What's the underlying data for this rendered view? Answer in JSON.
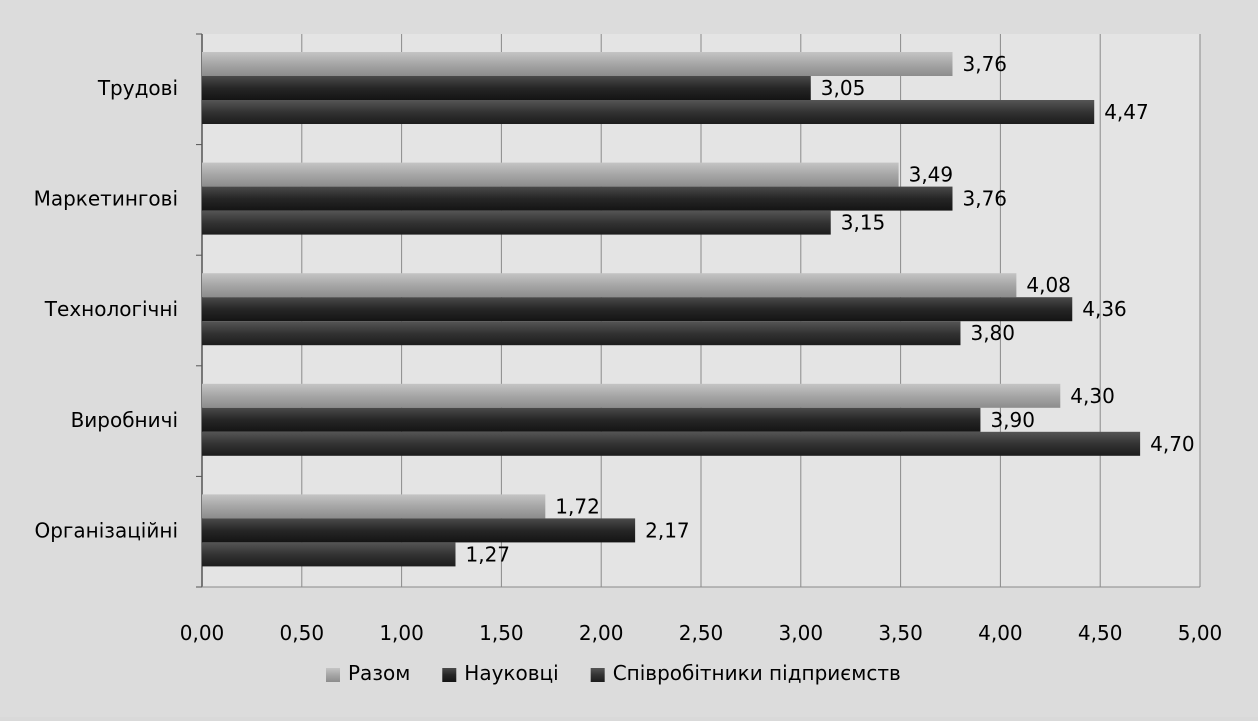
{
  "chart_data": {
    "type": "bar",
    "orientation": "horizontal",
    "categories": [
      "Трудові",
      "Маркетингові",
      "Технологічні",
      "Виробничі",
      "Організаційні"
    ],
    "series": [
      {
        "name": "Разом",
        "values": [
          3.76,
          3.49,
          4.08,
          4.3,
          1.72
        ],
        "labels": [
          "3,76",
          "3,49",
          "4,08",
          "4,30",
          "1,72"
        ],
        "color": "#a6a6a6"
      },
      {
        "name": "Науковці",
        "values": [
          3.05,
          3.76,
          4.36,
          3.9,
          2.17
        ],
        "labels": [
          "3,05",
          "3,76",
          "4,36",
          "3,90",
          "2,17"
        ],
        "color": "#262626"
      },
      {
        "name": "Співробітники підприємств",
        "values": [
          4.47,
          3.15,
          3.8,
          4.7,
          1.27
        ],
        "labels": [
          "4,47",
          "3,15",
          "3,80",
          "4,70",
          "1,27"
        ],
        "color": "#333333"
      }
    ],
    "xlim": [
      0,
      5
    ],
    "x_ticks": [
      0,
      0.5,
      1,
      1.5,
      2,
      2.5,
      3,
      3.5,
      4,
      4.5,
      5
    ],
    "x_tick_labels": [
      "0,00",
      "0,50",
      "1,00",
      "1,50",
      "2,00",
      "2,50",
      "3,00",
      "3,50",
      "4,00",
      "4,50",
      "5,00"
    ],
    "grid": true,
    "legend_position": "bottom"
  }
}
